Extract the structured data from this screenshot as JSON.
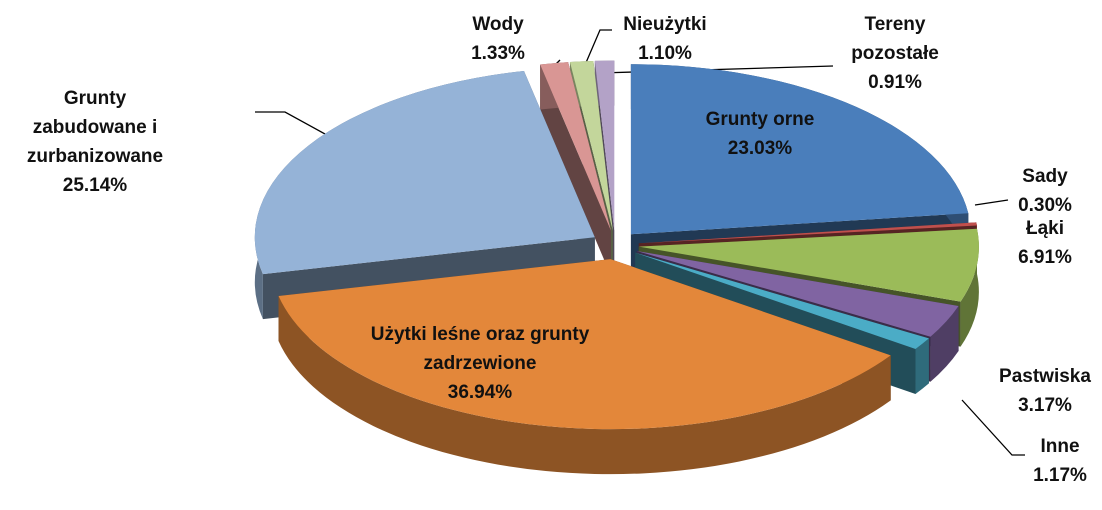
{
  "chart_data": {
    "type": "pie3d",
    "categories": [
      "Grunty orne",
      "Sady",
      "Łąki",
      "Pastwiska",
      "Inne",
      "Użytki leśne oraz grunty zadrzewione",
      "Grunty zabudowane i zurbanizowane",
      "Wody",
      "Nieużytki",
      "Tereny pozostałe"
    ],
    "values": [
      23.03,
      0.3,
      6.91,
      3.17,
      1.17,
      36.94,
      25.14,
      1.33,
      1.1,
      0.91
    ],
    "value_labels": [
      "23.03%",
      "0.30%",
      "6.91%",
      "3.17%",
      "1.17%",
      "36.94%",
      "25.14%",
      "1.33%",
      "1.10%",
      "0.91%"
    ],
    "colors": [
      "#4a7ebb",
      "#c0504d",
      "#9bbb59",
      "#8064a2",
      "#4bacc6",
      "#e3873a",
      "#95b3d7",
      "#d99694",
      "#c3d69b",
      "#b3a2c7"
    ]
  }
}
